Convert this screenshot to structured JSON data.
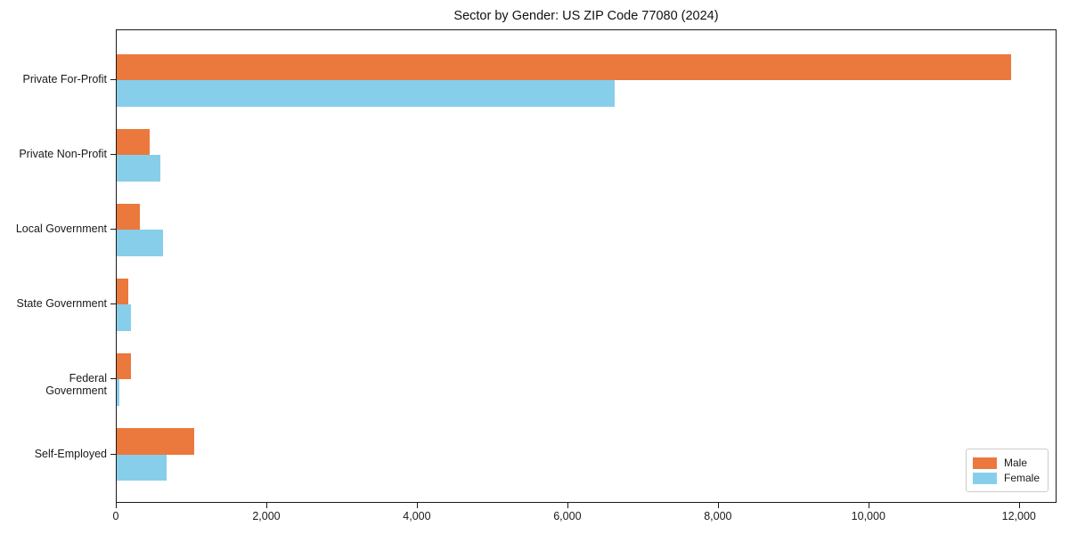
{
  "title": "Sector by Gender: US ZIP Code 77080 (2024)",
  "colors": {
    "male": "#eb783c",
    "female": "#87ceeb",
    "axis": "#1a1a1a",
    "background": "#ffffff",
    "legend_border": "#cccccc"
  },
  "legend": {
    "position": "lower-right",
    "items": [
      {
        "label": "Male",
        "color": "#eb783c"
      },
      {
        "label": "Female",
        "color": "#87ceeb"
      }
    ]
  },
  "chart_data": {
    "type": "bar",
    "orientation": "horizontal",
    "title": "Sector by Gender: US ZIP Code 77080 (2024)",
    "categories": [
      "Private For-Profit",
      "Private Non-Profit",
      "Local Government",
      "State Government",
      "Federal Government",
      "Self-Employed"
    ],
    "series": [
      {
        "name": "Male",
        "color": "#eb783c",
        "values": [
          11890,
          440,
          310,
          150,
          190,
          1025
        ]
      },
      {
        "name": "Female",
        "color": "#87ceeb",
        "values": [
          6620,
          580,
          615,
          190,
          40,
          660
        ]
      }
    ],
    "xlabel": "",
    "ylabel": "",
    "xlim": [
      0,
      12500
    ],
    "x_ticks": [
      0,
      2000,
      4000,
      6000,
      8000,
      10000,
      12000
    ],
    "x_tick_labels": [
      "0",
      "2,000",
      "4,000",
      "6,000",
      "8,000",
      "10,000",
      "12,000"
    ],
    "grid": false,
    "legend_position": "lower right"
  }
}
